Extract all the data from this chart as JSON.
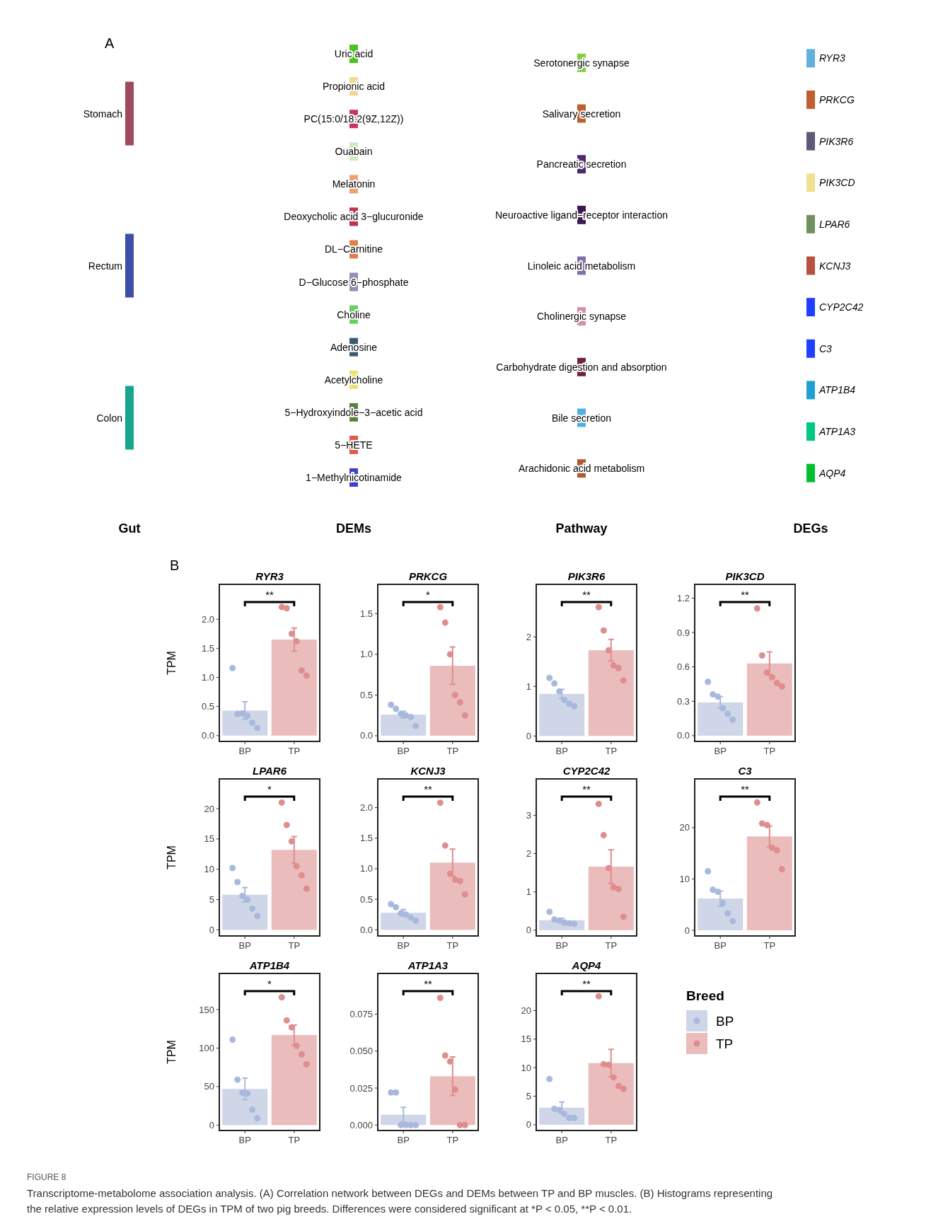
{
  "chart_data": [
    {
      "type": "other",
      "title": "A",
      "categories": [
        "Gut",
        "DEMs",
        "Pathway",
        "DEGs"
      ],
      "annotations": [
        {
          "text": "Stomach",
          "x": "Gut"
        },
        {
          "text": "Rectum",
          "x": "Gut"
        },
        {
          "text": "Colon",
          "x": "Gut"
        },
        {
          "text": "Uric acid",
          "x": "DEMs"
        },
        {
          "text": "Propionic acid",
          "x": "DEMs"
        },
        {
          "text": "PC(15:0/18:2(9Z,12Z))",
          "x": "DEMs"
        },
        {
          "text": "Ouabain",
          "x": "DEMs"
        },
        {
          "text": "Melatonin",
          "x": "DEMs"
        },
        {
          "text": "Deoxycholic acid 3−glucuronide",
          "x": "DEMs"
        },
        {
          "text": "DL−Carnitine",
          "x": "DEMs"
        },
        {
          "text": "D−Glucose 6−phosphate",
          "x": "DEMs"
        },
        {
          "text": "Choline",
          "x": "DEMs"
        },
        {
          "text": "Adenosine",
          "x": "DEMs"
        },
        {
          "text": "Acetylcholine",
          "x": "DEMs"
        },
        {
          "text": "5−Hydroxyindole−3−acetic acid",
          "x": "DEMs"
        },
        {
          "text": "5−HETE",
          "x": "DEMs"
        },
        {
          "text": "1−Methylnicotinamide",
          "x": "DEMs"
        },
        {
          "text": "Serotonergic synapse",
          "x": "Pathway"
        },
        {
          "text": "Salivary secretion",
          "x": "Pathway"
        },
        {
          "text": "Pancreatic secretion",
          "x": "Pathway"
        },
        {
          "text": "Neuroactive ligand−receptor interaction",
          "x": "Pathway"
        },
        {
          "text": "Linoleic acid metabolism",
          "x": "Pathway"
        },
        {
          "text": "Cholinergic synapse",
          "x": "Pathway"
        },
        {
          "text": "Carbohydrate digestion and absorption",
          "x": "Pathway"
        },
        {
          "text": "Bile secretion",
          "x": "Pathway"
        },
        {
          "text": "Arachidonic acid metabolism",
          "x": "Pathway"
        },
        {
          "text": "RYR3",
          "x": "DEGs"
        },
        {
          "text": "PRKCG",
          "x": "DEGs"
        },
        {
          "text": "PIK3R6",
          "x": "DEGs"
        },
        {
          "text": "PIK3CD",
          "x": "DEGs"
        },
        {
          "text": "LPAR6",
          "x": "DEGs"
        },
        {
          "text": "KCNJ3",
          "x": "DEGs"
        },
        {
          "text": "CYP2C42",
          "x": "DEGs"
        },
        {
          "text": "C3",
          "x": "DEGs"
        },
        {
          "text": "ATP1B4",
          "x": "DEGs"
        },
        {
          "text": "ATP1A3",
          "x": "DEGs"
        },
        {
          "text": "AQP4",
          "x": "DEGs"
        }
      ],
      "colors": [
        "#a04a5e",
        "#3e4fa8",
        "#18a58f",
        "#4cc21f",
        "#f0d890",
        "#c8345e",
        "#d0e8c0",
        "#f0a070",
        "#c03050",
        "#e08050",
        "#9090b0",
        "#68d060",
        "#3c5a70",
        "#f0e070",
        "#5a8040",
        "#e05a50",
        "#4040c8",
        "#80d040",
        "#c06030",
        "#502a70",
        "#3a1a50",
        "#8070b0",
        "#d890a8",
        "#702040",
        "#50aee0",
        "#b05a30",
        "#60b0e0",
        "#c06030",
        "#605878",
        "#f0e090",
        "#709060",
        "#b85040",
        "#2040ff",
        "#2040ff",
        "#20a0d0",
        "#00c880",
        "#00c030"
      ]
    },
    {
      "type": "bar",
      "title": "RYR3",
      "subtitle": "B",
      "ylabel": "TPM",
      "categories": [
        "BP",
        "TP"
      ],
      "ylim": [
        -0.1,
        2.6
      ],
      "yticks": [
        {
          "value": 0,
          "label": "0.0"
        },
        0.5,
        {
          "value": 1,
          "label": "1.0"
        },
        1.5,
        {
          "value": 2,
          "label": "2.0"
        }
      ],
      "annotations": [
        "**"
      ],
      "series": [
        {
          "type": "bar",
          "colors": [
            "#cfd6e8",
            "#ebbcbc"
          ],
          "values": [
            0.43,
            1.65
          ],
          "errors": [
            0.15,
            0.2
          ]
        },
        {
          "type": "scatter",
          "color": "#a9b8dd",
          "x": [
            "BP",
            "BP",
            "BP",
            "BP",
            "BP",
            "BP"
          ],
          "values": [
            1.16,
            0.37,
            0.38,
            0.34,
            0.22,
            0.13
          ]
        },
        {
          "type": "scatter",
          "color": "#e08d8d",
          "x": [
            "TP",
            "TP",
            "TP",
            "TP",
            "TP",
            "TP"
          ],
          "values": [
            2.21,
            2.19,
            1.75,
            1.62,
            1.12,
            1.03
          ]
        }
      ]
    },
    {
      "type": "bar",
      "title": "PRKCG",
      "categories": [
        "BP",
        "TP"
      ],
      "ylim": [
        -0.07,
        1.86
      ],
      "yticks": [
        {
          "value": 0,
          "label": "0.0"
        },
        0.5,
        {
          "value": 1,
          "label": "1.0"
        },
        1.5
      ],
      "annotations": [
        "*"
      ],
      "series": [
        {
          "type": "bar",
          "colors": [
            "#cfd6e8",
            "#ebbcbc"
          ],
          "values": [
            0.26,
            0.86
          ],
          "errors": [
            0.04,
            0.23
          ]
        },
        {
          "type": "scatter",
          "color": "#a9b8dd",
          "x": [
            "BP",
            "BP",
            "BP",
            "BP",
            "BP",
            "BP"
          ],
          "values": [
            0.38,
            0.33,
            0.27,
            0.25,
            0.23,
            0.12
          ]
        },
        {
          "type": "scatter",
          "color": "#e08d8d",
          "x": [
            "TP",
            "TP",
            "TP",
            "TP",
            "TP",
            "TP"
          ],
          "values": [
            1.58,
            1.39,
            1.0,
            0.5,
            0.41,
            0.25
          ]
        }
      ]
    },
    {
      "type": "bar",
      "title": "PIK3R6",
      "categories": [
        "BP",
        "TP"
      ],
      "ylim": [
        -0.11,
        3.06
      ],
      "yticks": [
        0,
        1,
        2
      ],
      "annotations": [
        "**"
      ],
      "series": [
        {
          "type": "bar",
          "colors": [
            "#cfd6e8",
            "#ebbcbc"
          ],
          "values": [
            0.85,
            1.73
          ],
          "errors": [
            0.09,
            0.22
          ]
        },
        {
          "type": "scatter",
          "color": "#a9b8dd",
          "x": [
            "BP",
            "BP",
            "BP",
            "BP",
            "BP",
            "BP"
          ],
          "values": [
            1.17,
            1.06,
            0.9,
            0.73,
            0.65,
            0.6
          ]
        },
        {
          "type": "scatter",
          "color": "#e08d8d",
          "x": [
            "TP",
            "TP",
            "TP",
            "TP",
            "TP",
            "TP"
          ],
          "values": [
            2.6,
            2.13,
            1.73,
            1.42,
            1.37,
            1.12
          ]
        }
      ]
    },
    {
      "type": "bar",
      "title": "PIK3CD",
      "categories": [
        "BP",
        "TP"
      ],
      "ylim": [
        -0.05,
        1.32
      ],
      "yticks": [
        {
          "value": 0,
          "label": "0.0"
        },
        0.3,
        0.6,
        0.9,
        1.2
      ],
      "annotations": [
        "**"
      ],
      "series": [
        {
          "type": "bar",
          "colors": [
            "#cfd6e8",
            "#ebbcbc"
          ],
          "values": [
            0.29,
            0.63
          ],
          "errors": [
            0.05,
            0.1
          ]
        },
        {
          "type": "scatter",
          "color": "#a9b8dd",
          "x": [
            "BP",
            "BP",
            "BP",
            "BP",
            "BP",
            "BP"
          ],
          "values": [
            0.47,
            0.36,
            0.34,
            0.24,
            0.19,
            0.14
          ]
        },
        {
          "type": "scatter",
          "color": "#e08d8d",
          "x": [
            "TP",
            "TP",
            "TP",
            "TP",
            "TP",
            "TP"
          ],
          "values": [
            1.11,
            0.7,
            0.55,
            0.51,
            0.46,
            0.43
          ]
        }
      ]
    },
    {
      "type": "bar",
      "title": "LPAR6",
      "ylabel": "TPM",
      "categories": [
        "BP",
        "TP"
      ],
      "ylim": [
        -1,
        24.9
      ],
      "yticks": [
        0,
        5,
        10,
        15,
        20
      ],
      "annotations": [
        "*"
      ],
      "series": [
        {
          "type": "bar",
          "colors": [
            "#cfd6e8",
            "#ebbcbc"
          ],
          "values": [
            5.8,
            13.2
          ],
          "errors": [
            1.2,
            2.2
          ]
        },
        {
          "type": "scatter",
          "color": "#a9b8dd",
          "x": [
            "BP",
            "BP",
            "BP",
            "BP",
            "BP",
            "BP"
          ],
          "values": [
            10.2,
            7.9,
            5.6,
            5.0,
            3.5,
            2.3
          ]
        },
        {
          "type": "scatter",
          "color": "#e08d8d",
          "x": [
            "TP",
            "TP",
            "TP",
            "TP",
            "TP",
            "TP"
          ],
          "values": [
            21,
            17.3,
            14.6,
            10.5,
            9.0,
            6.8
          ]
        }
      ]
    },
    {
      "type": "bar",
      "title": "KCNJ3",
      "categories": [
        "BP",
        "TP"
      ],
      "ylim": [
        -0.1,
        2.47
      ],
      "yticks": [
        {
          "value": 0,
          "label": "0.0"
        },
        0.5,
        {
          "value": 1,
          "label": "1.0"
        },
        1.5,
        {
          "value": 2,
          "label": "2.0"
        }
      ],
      "annotations": [
        "**"
      ],
      "series": [
        {
          "type": "bar",
          "colors": [
            "#cfd6e8",
            "#ebbcbc"
          ],
          "values": [
            0.28,
            1.1
          ],
          "errors": [
            0.05,
            0.22
          ]
        },
        {
          "type": "scatter",
          "color": "#a9b8dd",
          "x": [
            "BP",
            "BP",
            "BP",
            "BP",
            "BP",
            "BP"
          ],
          "values": [
            0.42,
            0.37,
            0.27,
            0.25,
            0.2,
            0.15
          ]
        },
        {
          "type": "scatter",
          "color": "#e08d8d",
          "x": [
            "TP",
            "TP",
            "TP",
            "TP",
            "TP",
            "TP"
          ],
          "values": [
            2.08,
            1.38,
            0.92,
            0.82,
            0.8,
            0.58
          ]
        }
      ]
    },
    {
      "type": "bar",
      "title": "CYP2C42",
      "categories": [
        "BP",
        "TP"
      ],
      "ylim": [
        -0.15,
        3.95
      ],
      "yticks": [
        0,
        1,
        2,
        3
      ],
      "annotations": [
        "**"
      ],
      "series": [
        {
          "type": "bar",
          "colors": [
            "#cfd6e8",
            "#ebbcbc"
          ],
          "values": [
            0.26,
            1.66
          ],
          "errors": [
            0.05,
            0.44
          ]
        },
        {
          "type": "scatter",
          "color": "#a9b8dd",
          "x": [
            "BP",
            "BP",
            "BP",
            "BP",
            "BP",
            "BP"
          ],
          "values": [
            0.48,
            0.28,
            0.25,
            0.2,
            0.18,
            0.17
          ]
        },
        {
          "type": "scatter",
          "color": "#e08d8d",
          "x": [
            "TP",
            "TP",
            "TP",
            "TP",
            "TP",
            "TP"
          ],
          "values": [
            3.3,
            2.48,
            1.62,
            1.12,
            1.08,
            0.35
          ]
        }
      ]
    },
    {
      "type": "bar",
      "title": "C3",
      "categories": [
        "BP",
        "TP"
      ],
      "ylim": [
        -1.1,
        29.5
      ],
      "yticks": [
        0,
        10,
        20
      ],
      "annotations": [
        "**"
      ],
      "series": [
        {
          "type": "bar",
          "colors": [
            "#cfd6e8",
            "#ebbcbc"
          ],
          "values": [
            6.2,
            18.3
          ],
          "errors": [
            1.5,
            2
          ]
        },
        {
          "type": "scatter",
          "color": "#a9b8dd",
          "x": [
            "BP",
            "BP",
            "BP",
            "BP",
            "BP",
            "BP"
          ],
          "values": [
            11.5,
            7.9,
            7.5,
            5.3,
            3.3,
            1.8
          ]
        },
        {
          "type": "scatter",
          "color": "#e08d8d",
          "x": [
            "TP",
            "TP",
            "TP",
            "TP",
            "TP",
            "TP"
          ],
          "values": [
            24.9,
            20.8,
            20.5,
            16.1,
            15.6,
            11.9
          ]
        }
      ]
    },
    {
      "type": "bar",
      "title": "ATP1B4",
      "ylabel": "TPM",
      "categories": [
        "BP",
        "TP"
      ],
      "ylim": [
        -7,
        197
      ],
      "yticks": [
        0,
        50,
        100,
        150
      ],
      "annotations": [
        "*"
      ],
      "series": [
        {
          "type": "bar",
          "colors": [
            "#cfd6e8",
            "#ebbcbc"
          ],
          "values": [
            47,
            117
          ],
          "errors": [
            14,
            13
          ]
        },
        {
          "type": "scatter",
          "color": "#a9b8dd",
          "x": [
            "BP",
            "BP",
            "BP",
            "BP",
            "BP",
            "BP"
          ],
          "values": [
            111,
            59,
            42,
            41,
            20,
            9
          ]
        },
        {
          "type": "scatter",
          "color": "#e08d8d",
          "x": [
            "TP",
            "TP",
            "TP",
            "TP",
            "TP",
            "TP"
          ],
          "values": [
            166,
            136,
            127,
            103,
            92,
            79
          ]
        }
      ]
    },
    {
      "type": "bar",
      "title": "ATP1A3",
      "categories": [
        "BP",
        "TP"
      ],
      "ylim": [
        -0.0037,
        0.1025
      ],
      "yticks": [
        {
          "value": 0,
          "label": "0.000"
        },
        0.025,
        {
          "value": 0.05,
          "label": "0.050"
        },
        0.075
      ],
      "annotations": [
        "**"
      ],
      "series": [
        {
          "type": "bar",
          "colors": [
            "#cfd6e8",
            "#ebbcbc"
          ],
          "values": [
            0.007,
            0.033
          ],
          "errors": [
            0.005,
            0.013
          ]
        },
        {
          "type": "scatter",
          "color": "#a9b8dd",
          "x": [
            "BP",
            "BP",
            "BP",
            "BP",
            "BP",
            "BP"
          ],
          "values": [
            0.022,
            0.022,
            0,
            0,
            0,
            0
          ]
        },
        {
          "type": "scatter",
          "color": "#e08d8d",
          "x": [
            "TP",
            "TP",
            "TP",
            "TP",
            "TP",
            "TP"
          ],
          "values": [
            0.086,
            0.047,
            0.043,
            0.024,
            0,
            0
          ]
        }
      ]
    },
    {
      "type": "bar",
      "title": "AQP4",
      "categories": [
        "BP",
        "TP"
      ],
      "ylim": [
        -1,
        26.5
      ],
      "yticks": [
        0,
        5,
        10,
        15,
        20
      ],
      "annotations": [
        "**"
      ],
      "legend": "right",
      "legend_title": "Breed",
      "series": [
        {
          "type": "bar",
          "name": "BP",
          "color": "#cfd6e8",
          "values": [
            3.0,
            null
          ],
          "errors": [
            1,
            null
          ]
        },
        {
          "type": "bar",
          "name": "TP",
          "color": "#ebbcbc",
          "values": [
            null,
            10.8
          ],
          "errors": [
            null,
            2.4
          ]
        },
        {
          "type": "scatter",
          "color": "#a9b8dd",
          "x": [
            "BP",
            "BP",
            "BP",
            "BP",
            "BP",
            "BP"
          ],
          "values": [
            8.0,
            2.8,
            2.6,
            1.9,
            1.2,
            1.2
          ]
        },
        {
          "type": "scatter",
          "color": "#e08d8d",
          "x": [
            "TP",
            "TP",
            "TP",
            "TP",
            "TP",
            "TP"
          ],
          "values": [
            22.5,
            10.6,
            10.5,
            8.3,
            6.8,
            6.3
          ]
        }
      ]
    },
    {
      "type": "other",
      "title": "FIGURE 8",
      "annotations": [
        "Transcriptome-metabolome association analysis. (A) Correlation network between DEGs and DEMs between TP and BP muscles. (B) Histograms representing the relative expression levels of DEGs in TPM of two pig breeds. Differences were considered significant at *P < 0.05, **P < 0.01."
      ]
    }
  ]
}
